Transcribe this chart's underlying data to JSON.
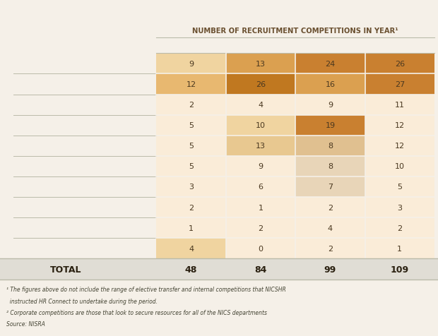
{
  "title": "NUMBER OF RECRUITMENT COMPETITIONS IN YEAR¹",
  "col_totals": [
    48,
    84,
    99,
    109
  ],
  "rows": [
    [
      9,
      13,
      24,
      26
    ],
    [
      12,
      26,
      16,
      27
    ],
    [
      2,
      4,
      9,
      11
    ],
    [
      5,
      10,
      19,
      12
    ],
    [
      5,
      13,
      8,
      12
    ],
    [
      5,
      9,
      8,
      10
    ],
    [
      3,
      6,
      7,
      5
    ],
    [
      2,
      1,
      2,
      3
    ],
    [
      1,
      2,
      4,
      2
    ],
    [
      4,
      0,
      2,
      1
    ]
  ],
  "total_label": "TOTAL",
  "footnote1": "¹ The figures above do not include the range of elective transfer and internal competitions that NICSHR",
  "footnote1b": "  instructed HR Connect to undertake during the period.",
  "footnote2": "² Corporate competitions are those that look to secure resources for all of the NICS departments",
  "footnote3": "Source: NISRA",
  "fig_bg": "#f5f0e8",
  "cell_colors": [
    [
      "#f0d4a0",
      "#dba050",
      "#c98030",
      "#c98030"
    ],
    [
      "#e8b870",
      "#c07820",
      "#dba050",
      "#c98030"
    ],
    [
      "#faecd8",
      "#faecd8",
      "#faecd8",
      "#faecd8"
    ],
    [
      "#faecd8",
      "#f0d4a0",
      "#c98030",
      "#faecd8"
    ],
    [
      "#faecd8",
      "#e8c890",
      "#e0c090",
      "#faecd8"
    ],
    [
      "#faecd8",
      "#faecd8",
      "#e8d5b8",
      "#faecd8"
    ],
    [
      "#faecd8",
      "#faecd8",
      "#e8d5b8",
      "#faecd8"
    ],
    [
      "#faecd8",
      "#faecd8",
      "#faecd8",
      "#faecd8"
    ],
    [
      "#faecd8",
      "#faecd8",
      "#faecd8",
      "#faecd8"
    ],
    [
      "#f0d4a0",
      "#faecd8",
      "#faecd8",
      "#faecd8"
    ]
  ],
  "total_row_bg": "#e0ddd5",
  "text_color": "#4a3820",
  "total_text_color": "#2a2010",
  "title_color": "#6a5030",
  "footnote_color": "#444433",
  "separator_color": "#bbbbaa",
  "white_line": "#f5f0e8",
  "figsize": [
    6.2,
    4.77
  ],
  "dpi": 100
}
